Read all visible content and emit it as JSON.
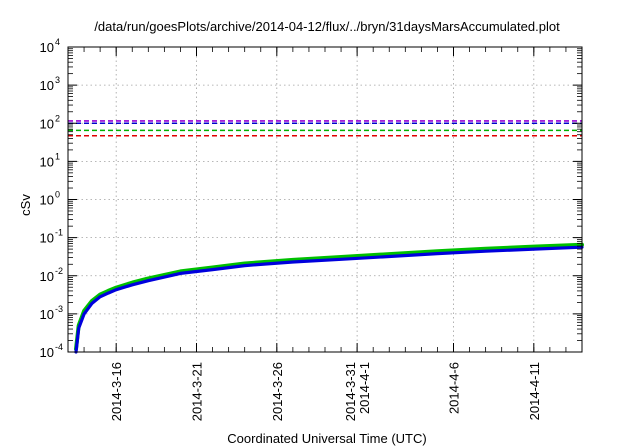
{
  "chart_data": {
    "type": "line",
    "title": "/data/run/goesPlots/archive/2014-04-12/flux/../bryn/31daysMarsAccumulated.plot",
    "xlabel": "Coordinated Universal Time (UTC)",
    "ylabel": "cSv",
    "x_type": "date",
    "xlim": [
      "2014-03-13",
      "2014-04-14"
    ],
    "x_ticks": [
      {
        "x": "2014-03-16",
        "lines": [
          "2014-3-16"
        ]
      },
      {
        "x": "2014-03-21",
        "lines": [
          "2014-3-21"
        ]
      },
      {
        "x": "2014-03-26",
        "lines": [
          "2014-3-26"
        ]
      },
      {
        "x": "2014-03-31",
        "lines": [
          "2014-3-31",
          "2014-4-1"
        ]
      },
      {
        "x": "2014-04-06",
        "lines": [
          "2014-4-6"
        ]
      },
      {
        "x": "2014-04-11",
        "lines": [
          "2014-4-11"
        ]
      }
    ],
    "y_scale": "log",
    "ylim": [
      0.0001,
      10000
    ],
    "y_ticks": [
      {
        "value": 0.0001,
        "base": "10",
        "exp": "-4"
      },
      {
        "value": 0.001,
        "base": "10",
        "exp": "-3"
      },
      {
        "value": 0.01,
        "base": "10",
        "exp": "-2"
      },
      {
        "value": 0.1,
        "base": "10",
        "exp": "-1"
      },
      {
        "value": 1,
        "base": "10",
        "exp": "0"
      },
      {
        "value": 10,
        "base": "10",
        "exp": "1"
      },
      {
        "value": 100,
        "base": "10",
        "exp": "2"
      },
      {
        "value": 1000,
        "base": "10",
        "exp": "3"
      },
      {
        "value": 10000,
        "base": "10",
        "exp": "4"
      }
    ],
    "grid": true,
    "legend": "none",
    "reference_lines": [
      {
        "y": 115,
        "color": "#9400d3",
        "style": "dashed"
      },
      {
        "y": 100,
        "color": "#0000cd",
        "style": "dashed"
      },
      {
        "y": 65,
        "color": "#00b000",
        "style": "dashed"
      },
      {
        "y": 47,
        "color": "#e00000",
        "style": "dashed"
      }
    ],
    "series": [
      {
        "color": "#00c000",
        "x": [
          "2014-03-13 12:00",
          "2014-03-13 16:00",
          "2014-03-14 00:00",
          "2014-03-14 12:00",
          "2014-03-15 00:00",
          "2014-03-15 12:00",
          "2014-03-16 00:00",
          "2014-03-17 00:00",
          "2014-03-18 00:00",
          "2014-03-20 00:00",
          "2014-03-22 00:00",
          "2014-03-24 00:00",
          "2014-03-27 00:00",
          "2014-03-30 00:00",
          "2014-04-02 00:00",
          "2014-04-05 00:00",
          "2014-04-08 00:00",
          "2014-04-11 00:00",
          "2014-04-14 00:00"
        ],
        "y": [
          0.00012,
          0.0005,
          0.0012,
          0.0022,
          0.0032,
          0.004,
          0.0049,
          0.0066,
          0.0085,
          0.013,
          0.0165,
          0.021,
          0.026,
          0.031,
          0.037,
          0.044,
          0.051,
          0.058,
          0.065
        ]
      },
      {
        "color": "#0000dd",
        "x": [
          "2014-03-13 12:00",
          "2014-03-13 16:00",
          "2014-03-14 00:00",
          "2014-03-14 12:00",
          "2014-03-15 00:00",
          "2014-03-15 12:00",
          "2014-03-16 00:00",
          "2014-03-17 00:00",
          "2014-03-18 00:00",
          "2014-03-20 00:00",
          "2014-03-22 00:00",
          "2014-03-24 00:00",
          "2014-03-27 00:00",
          "2014-03-30 00:00",
          "2014-04-02 00:00",
          "2014-04-05 00:00",
          "2014-04-08 00:00",
          "2014-04-11 00:00",
          "2014-04-14 00:00"
        ],
        "y": [
          0.0001,
          0.00042,
          0.001,
          0.0019,
          0.0028,
          0.0035,
          0.0043,
          0.0058,
          0.0074,
          0.0115,
          0.0145,
          0.0185,
          0.023,
          0.027,
          0.032,
          0.038,
          0.044,
          0.05,
          0.056
        ]
      }
    ]
  }
}
